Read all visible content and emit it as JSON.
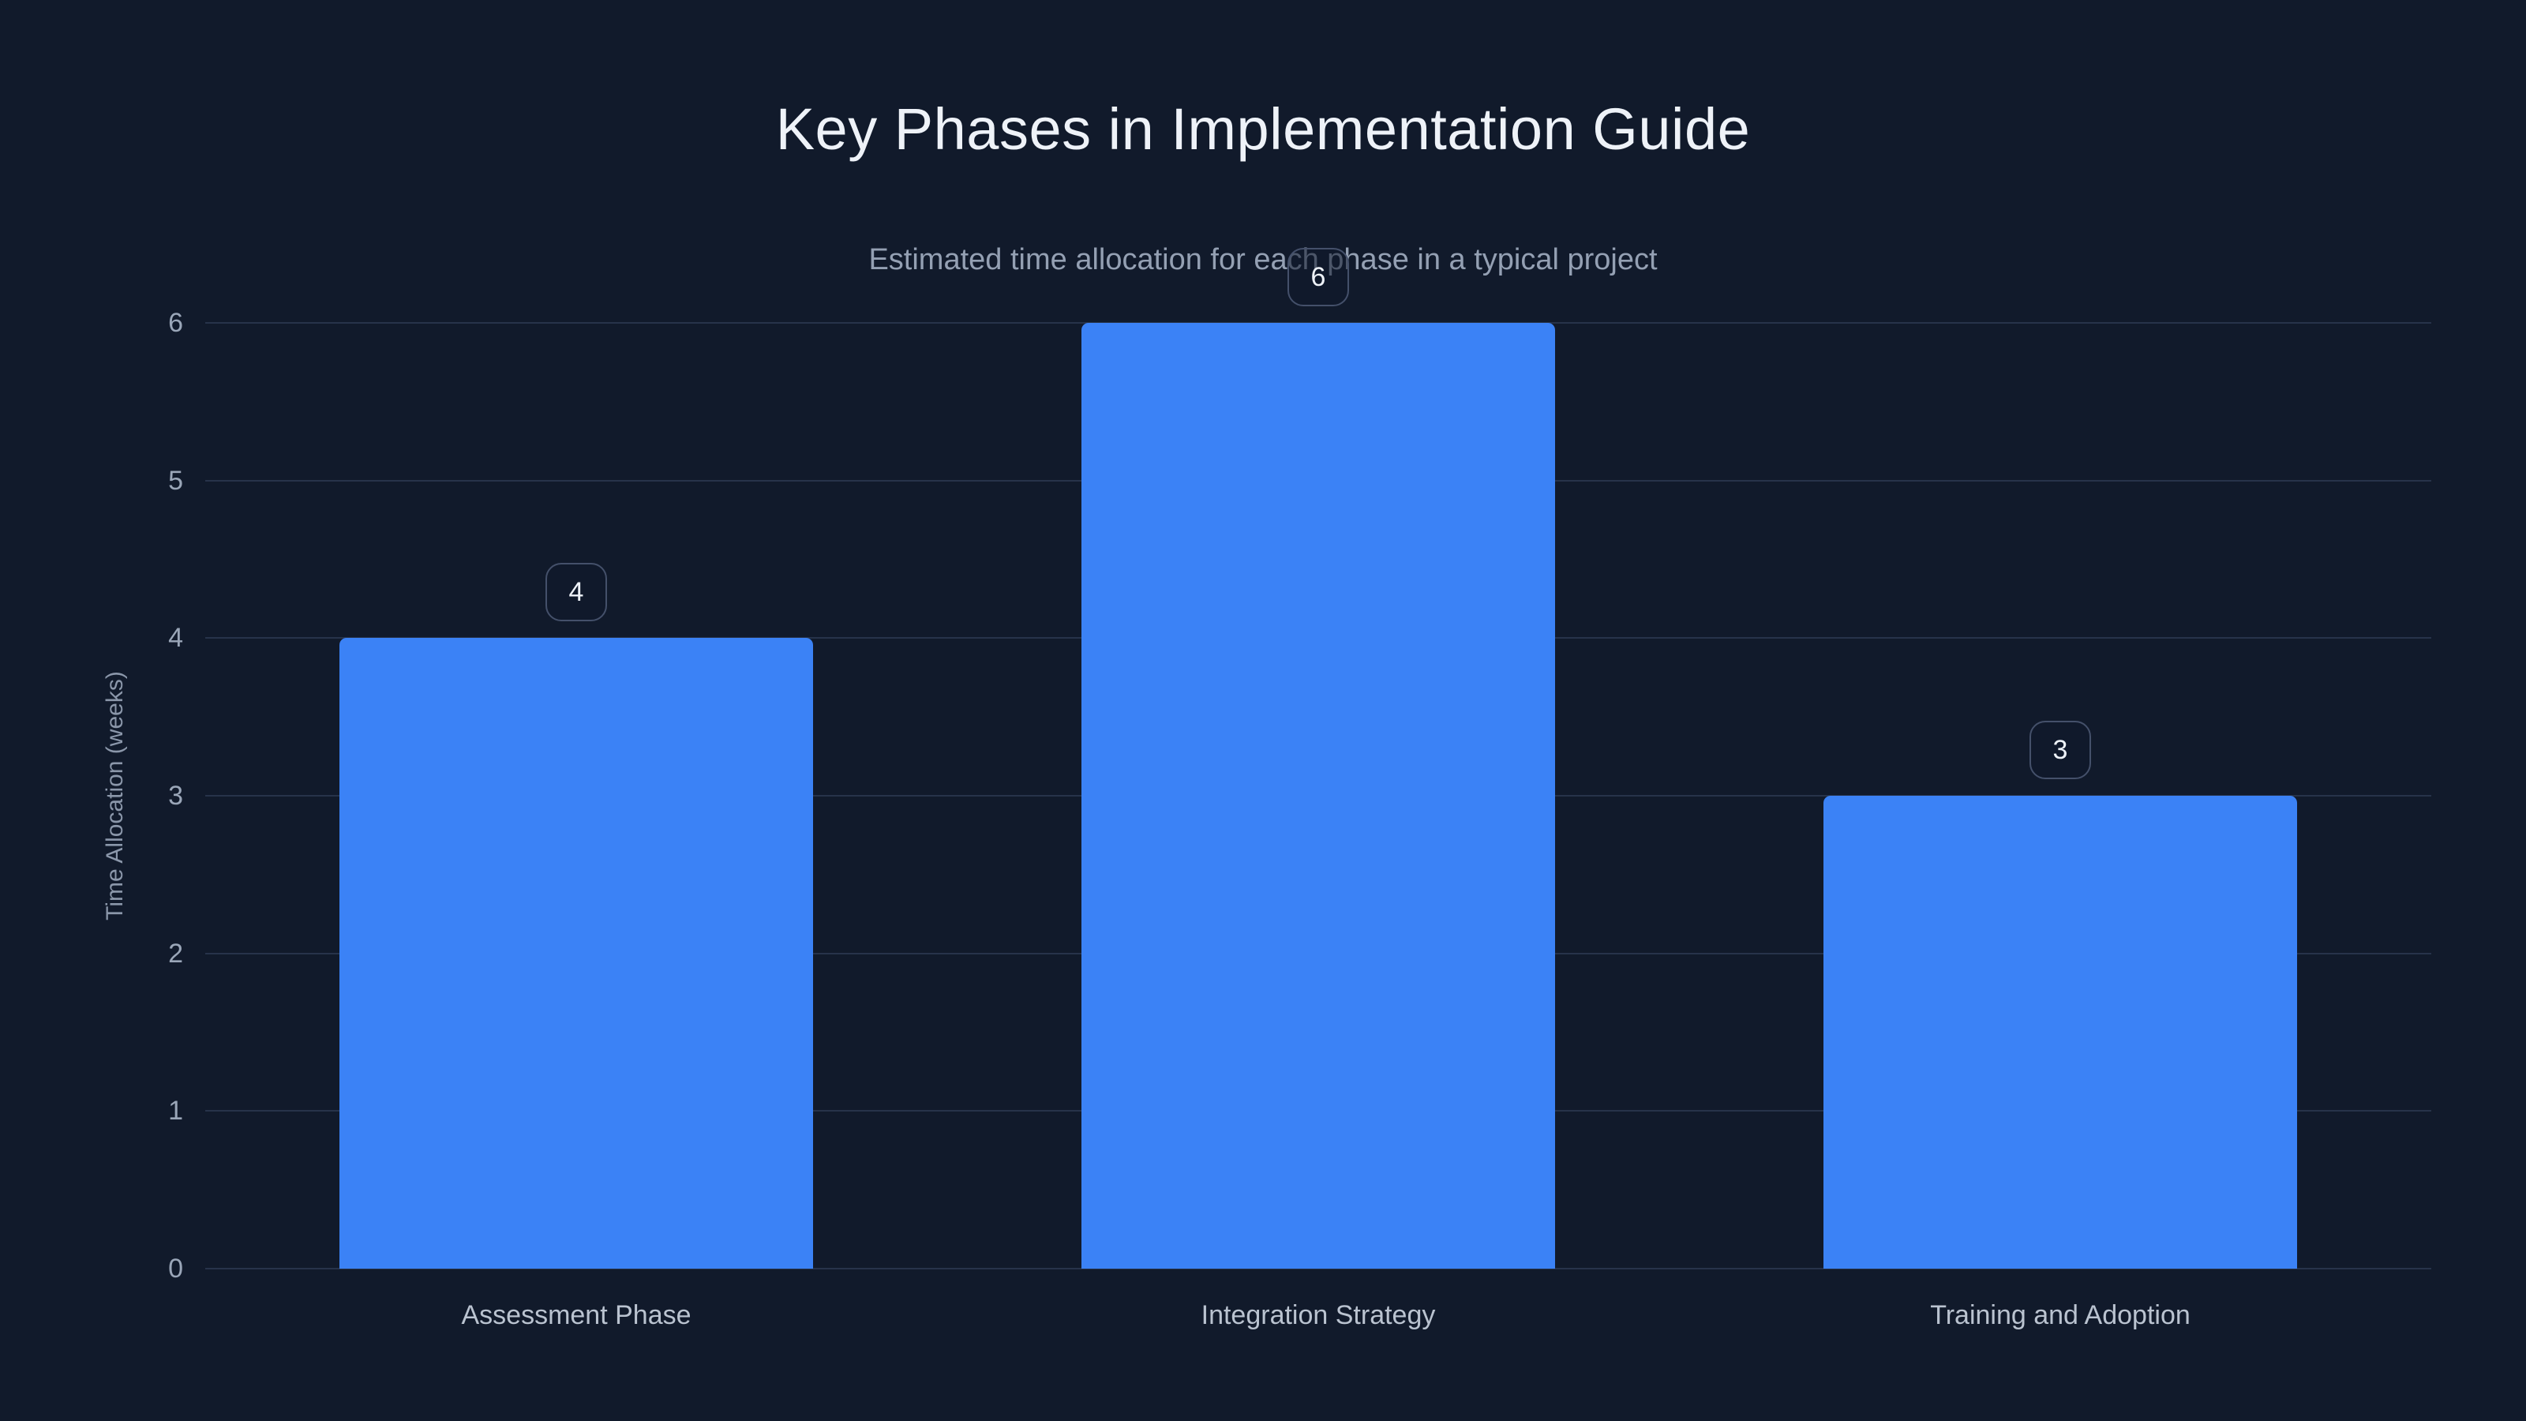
{
  "chart_data": {
    "type": "bar",
    "title": "Key Phases in Implementation Guide",
    "subtitle": "Estimated time allocation for each phase in a typical project",
    "categories": [
      "Assessment Phase",
      "Integration Strategy",
      "Training and Adoption"
    ],
    "values": [
      4,
      6,
      3
    ],
    "value_labels": [
      "4",
      "6",
      "3"
    ],
    "xlabel": "",
    "ylabel": "Time Allocation (weeks)",
    "ylim": [
      0,
      6
    ],
    "yticks": [
      0,
      1,
      2,
      3,
      4,
      5,
      6
    ],
    "grid": "horizontal-only",
    "legend": "none",
    "bar_style": "rounded-top",
    "value_label_style": "bordered-badge-above-bar"
  },
  "colors": {
    "background": "#111a2b",
    "bar": "#3b82f6",
    "gridline": "#27334a",
    "title_text": "#eef2f8",
    "subtitle_text": "#94a0b3",
    "tick_text": "#9aa6b8",
    "axis_title_text": "#8b97aa",
    "category_text": "#bac3d0",
    "badge_border": "#44506a",
    "badge_background": "rgba(17,26,43,0.55)",
    "badge_text": "#eef2f8"
  }
}
